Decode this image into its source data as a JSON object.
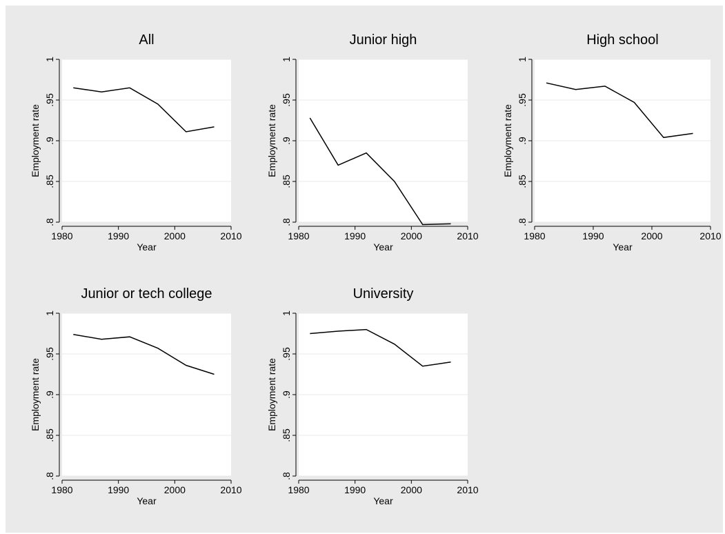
{
  "figure": {
    "background_color": "#EAEAEA",
    "plot_background_color": "#FFFFFF",
    "grid_color": "#EAEAEA",
    "line_color": "#000000"
  },
  "chart_data": [
    {
      "type": "line",
      "title": "All",
      "xlabel": "Year",
      "ylabel": "Employment rate",
      "xlim": [
        1980,
        2010
      ],
      "ylim": [
        0.8,
        1.0
      ],
      "xticks": [
        1980,
        1990,
        2000,
        2010
      ],
      "xtick_labels": [
        "1980",
        "1990",
        "2000",
        "2010"
      ],
      "yticks": [
        0.8,
        0.85,
        0.9,
        0.95,
        1.0
      ],
      "ytick_labels": [
        ".8",
        ".85",
        ".9",
        ".95",
        "1"
      ],
      "grid": true,
      "x": [
        1982,
        1987,
        1992,
        1997,
        2002,
        2007
      ],
      "y": [
        0.965,
        0.96,
        0.965,
        0.945,
        0.911,
        0.917
      ]
    },
    {
      "type": "line",
      "title": "Junior high",
      "xlabel": "Year",
      "ylabel": "Employment rate",
      "xlim": [
        1980,
        2010
      ],
      "ylim": [
        0.8,
        1.0
      ],
      "xticks": [
        1980,
        1990,
        2000,
        2010
      ],
      "xtick_labels": [
        "1980",
        "1990",
        "2000",
        "2010"
      ],
      "yticks": [
        0.8,
        0.85,
        0.9,
        0.95,
        1.0
      ],
      "ytick_labels": [
        ".8",
        ".85",
        ".9",
        ".95",
        "1"
      ],
      "grid": true,
      "x": [
        1982,
        1987,
        1992,
        1997,
        2002,
        2007
      ],
      "y": [
        0.928,
        0.87,
        0.885,
        0.85,
        0.797,
        0.798
      ]
    },
    {
      "type": "line",
      "title": "High school",
      "xlabel": "Year",
      "ylabel": "Employment rate",
      "xlim": [
        1980,
        2010
      ],
      "ylim": [
        0.8,
        1.0
      ],
      "xticks": [
        1980,
        1990,
        2000,
        2010
      ],
      "xtick_labels": [
        "1980",
        "1990",
        "2000",
        "2010"
      ],
      "yticks": [
        0.8,
        0.85,
        0.9,
        0.95,
        1.0
      ],
      "ytick_labels": [
        ".8",
        ".85",
        ".9",
        ".95",
        "1"
      ],
      "grid": true,
      "x": [
        1982,
        1987,
        1992,
        1997,
        2002,
        2007
      ],
      "y": [
        0.971,
        0.963,
        0.967,
        0.947,
        0.904,
        0.909
      ]
    },
    {
      "type": "line",
      "title": "Junior or tech college",
      "xlabel": "Year",
      "ylabel": "Employment rate",
      "xlim": [
        1980,
        2010
      ],
      "ylim": [
        0.8,
        1.0
      ],
      "xticks": [
        1980,
        1990,
        2000,
        2010
      ],
      "xtick_labels": [
        "1980",
        "1990",
        "2000",
        "2010"
      ],
      "yticks": [
        0.8,
        0.85,
        0.9,
        0.95,
        1.0
      ],
      "ytick_labels": [
        ".8",
        ".85",
        ".9",
        ".95",
        "1"
      ],
      "grid": true,
      "x": [
        1982,
        1987,
        1992,
        1997,
        2002,
        2007
      ],
      "y": [
        0.974,
        0.968,
        0.971,
        0.957,
        0.936,
        0.925
      ]
    },
    {
      "type": "line",
      "title": "University",
      "xlabel": "Year",
      "ylabel": "Employment rate",
      "xlim": [
        1980,
        2010
      ],
      "ylim": [
        0.8,
        1.0
      ],
      "xticks": [
        1980,
        1990,
        2000,
        2010
      ],
      "xtick_labels": [
        "1980",
        "1990",
        "2000",
        "2010"
      ],
      "yticks": [
        0.8,
        0.85,
        0.9,
        0.95,
        1.0
      ],
      "ytick_labels": [
        ".8",
        ".85",
        ".9",
        ".95",
        "1"
      ],
      "grid": true,
      "x": [
        1982,
        1987,
        1992,
        1997,
        2002,
        2007
      ],
      "y": [
        0.975,
        0.978,
        0.98,
        0.962,
        0.935,
        0.94
      ]
    }
  ]
}
